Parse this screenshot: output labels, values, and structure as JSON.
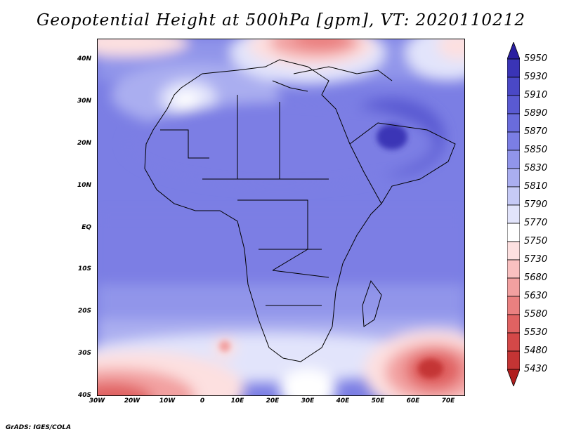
{
  "title": "Geopotential Height at 500hPa [gpm], VT: 2020110212",
  "credit": "GrADS: IGES/COLA",
  "map": {
    "variable": "Geopotential Height",
    "level": "500hPa",
    "units": "gpm",
    "valid_time": "2020110212",
    "lat_ticks": [
      "40N",
      "30N",
      "20N",
      "10N",
      "EQ",
      "10S",
      "20S",
      "30S",
      "40S"
    ],
    "lon_ticks": [
      "30W",
      "20W",
      "10W",
      "0",
      "10E",
      "20E",
      "30E",
      "40E",
      "50E",
      "60E",
      "70E"
    ],
    "lat_range": [
      -40,
      44
    ],
    "lon_range": [
      -30,
      75
    ]
  },
  "colorbar": {
    "levels": [
      "5950",
      "5930",
      "5910",
      "5890",
      "5870",
      "5850",
      "5830",
      "5810",
      "5790",
      "5770",
      "5750",
      "5730",
      "5680",
      "5630",
      "5580",
      "5530",
      "5480",
      "5430"
    ],
    "colors": [
      "#2a1fa0",
      "#3a34b6",
      "#4a48c6",
      "#5a5ad2",
      "#6a6cdc",
      "#7b7ee4",
      "#9195ea",
      "#aaaef0",
      "#c6caf6",
      "#e2e4fb",
      "#ffffff",
      "#fde0e0",
      "#f9c0c0",
      "#f2a0a0",
      "#ea8080",
      "#e06262",
      "#d44848",
      "#c43434",
      "#b01e1e"
    ]
  }
}
